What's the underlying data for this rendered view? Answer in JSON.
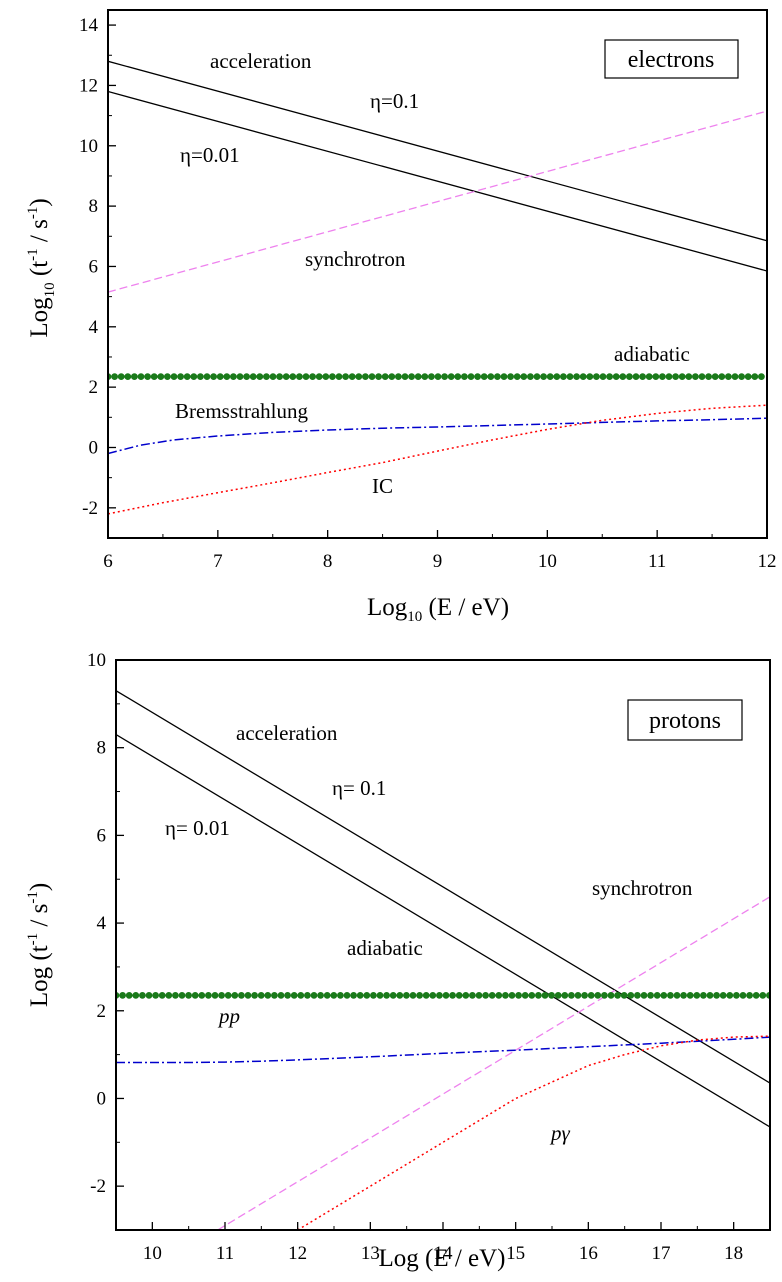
{
  "chart_data": [
    {
      "type": "line",
      "panel": "electrons",
      "xlabel": "Log10 (E / eV)",
      "ylabel": "Log10 (t^-1 / s^-1)",
      "xlim": [
        6,
        12
      ],
      "ylim": [
        -3,
        14.5
      ],
      "xticks": [
        6,
        7,
        8,
        9,
        10,
        11,
        12
      ],
      "yticks": [
        -2,
        0,
        2,
        4,
        6,
        8,
        10,
        12,
        14
      ],
      "grid": false,
      "legend_box": "electrons",
      "labels": {
        "acceleration": "acceleration",
        "eta01": "η=0.1",
        "eta001": "η=0.01",
        "synchrotron": "synchrotron",
        "adiabatic": "adiabatic",
        "bremsstrahlung": "Bremsstrahlung",
        "ic": "IC"
      },
      "series": [
        {
          "name": "acceleration η=0.1",
          "style": "solid",
          "color": "#000000",
          "x": [
            6,
            12
          ],
          "y": [
            12.8,
            6.85
          ]
        },
        {
          "name": "acceleration η=0.01",
          "style": "solid",
          "color": "#000000",
          "x": [
            6,
            12
          ],
          "y": [
            11.8,
            5.85
          ]
        },
        {
          "name": "synchrotron",
          "style": "dashed",
          "color": "#ee82ee",
          "x": [
            6,
            12
          ],
          "y": [
            5.15,
            11.15
          ]
        },
        {
          "name": "adiabatic",
          "style": "dots",
          "color": "#1a7a1a",
          "x": [
            6,
            12
          ],
          "y": [
            2.35,
            2.35
          ]
        },
        {
          "name": "Bremsstrahlung",
          "style": "dashdot",
          "color": "#0000cc",
          "x": [
            6,
            6.3,
            6.6,
            7,
            7.5,
            8,
            8.5,
            9,
            9.5,
            10,
            10.5,
            11,
            11.5,
            12
          ],
          "y": [
            -0.2,
            0.08,
            0.25,
            0.38,
            0.5,
            0.58,
            0.64,
            0.68,
            0.73,
            0.78,
            0.83,
            0.88,
            0.92,
            0.97
          ]
        },
        {
          "name": "IC",
          "style": "dotted",
          "color": "#ff0000",
          "x": [
            6,
            6.5,
            7,
            7.5,
            8,
            8.5,
            9,
            9.5,
            10,
            10.5,
            11,
            11.5,
            12
          ],
          "y": [
            -2.2,
            -1.83,
            -1.5,
            -1.17,
            -0.83,
            -0.5,
            -0.12,
            0.25,
            0.6,
            0.9,
            1.13,
            1.3,
            1.4
          ]
        }
      ]
    },
    {
      "type": "line",
      "panel": "protons",
      "xlabel": "Log (E / eV)",
      "ylabel": "Log (t^-1 / s^-1)",
      "xlim": [
        9.5,
        18.5
      ],
      "ylim": [
        -3,
        10
      ],
      "xticks": [
        10,
        11,
        12,
        13,
        14,
        15,
        16,
        17,
        18
      ],
      "yticks": [
        -2,
        0,
        2,
        4,
        6,
        8,
        10
      ],
      "grid": false,
      "legend_box": "protons",
      "labels": {
        "acceleration": "acceleration",
        "eta01": "η= 0.1",
        "eta001": "η= 0.01",
        "synchrotron": "synchrotron",
        "adiabatic": "adiabatic",
        "pp": "pp",
        "pgamma": "pγ"
      },
      "series": [
        {
          "name": "acceleration η=0.1",
          "style": "solid",
          "color": "#000000",
          "x": [
            9.5,
            18.5
          ],
          "y": [
            9.3,
            0.35
          ]
        },
        {
          "name": "acceleration η=0.01",
          "style": "solid",
          "color": "#000000",
          "x": [
            9.5,
            18.5
          ],
          "y": [
            8.3,
            -0.65
          ]
        },
        {
          "name": "synchrotron",
          "style": "dashed",
          "color": "#ee82ee",
          "x": [
            10.9,
            18.5
          ],
          "y": [
            -3.0,
            4.6
          ]
        },
        {
          "name": "adiabatic",
          "style": "dots",
          "color": "#1a7a1a",
          "x": [
            9.5,
            18.5
          ],
          "y": [
            2.35,
            2.35
          ]
        },
        {
          "name": "pp",
          "style": "dashdot",
          "color": "#0000cc",
          "x": [
            9.5,
            10.5,
            11,
            11.5,
            12,
            13,
            14,
            15,
            16,
            17,
            18,
            18.5
          ],
          "y": [
            0.82,
            0.82,
            0.83,
            0.85,
            0.88,
            0.95,
            1.03,
            1.1,
            1.18,
            1.26,
            1.35,
            1.4
          ]
        },
        {
          "name": "pγ",
          "style": "dotted",
          "color": "#ff0000",
          "x": [
            12,
            13,
            14,
            15,
            16,
            16.5,
            17,
            17.5,
            18,
            18.5
          ],
          "y": [
            -3.0,
            -2.0,
            -1.0,
            0.0,
            0.75,
            1.0,
            1.2,
            1.33,
            1.4,
            1.42
          ]
        }
      ]
    }
  ]
}
